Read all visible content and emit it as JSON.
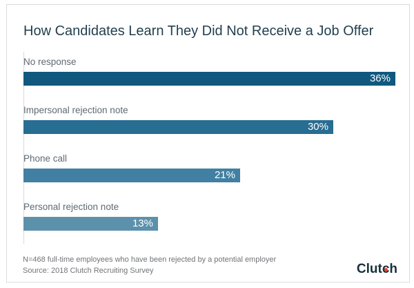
{
  "chart_data": {
    "type": "bar",
    "orientation": "horizontal",
    "title": "How Candidates Learn They Did Not Receive a Job Offer",
    "categories": [
      "No response",
      "Impersonal rejection note",
      "Phone call",
      "Personal rejection note"
    ],
    "values": [
      36,
      30,
      21,
      13
    ],
    "value_labels": [
      "36%",
      "30%",
      "21%",
      "13%"
    ],
    "xlabel": "",
    "ylabel": "",
    "xlim": [
      0,
      36
    ],
    "grid": false,
    "legend": false,
    "value_label_position": "inside-end",
    "bar_colors": [
      "#10587E",
      "#286D92",
      "#4180A2",
      "#5C91AC"
    ]
  },
  "footer": {
    "note": "N=468 full-time employees who have been rejected by a potential employer",
    "source": "Source: 2018 Clutch Recruiting Survey"
  },
  "brand": {
    "name": "Clutch",
    "logo_text_color": "#17313B",
    "logo_dot_color": "#EE402D"
  },
  "theme": {
    "background": "#FFFFFF",
    "card_border_color": "#DADBDD",
    "title_color": "#22404E",
    "category_label_color": "#5F6A72",
    "value_label_color": "#FFFFFF",
    "footer_text_color": "#717376",
    "axis_line_color": "#D8D9DA"
  }
}
